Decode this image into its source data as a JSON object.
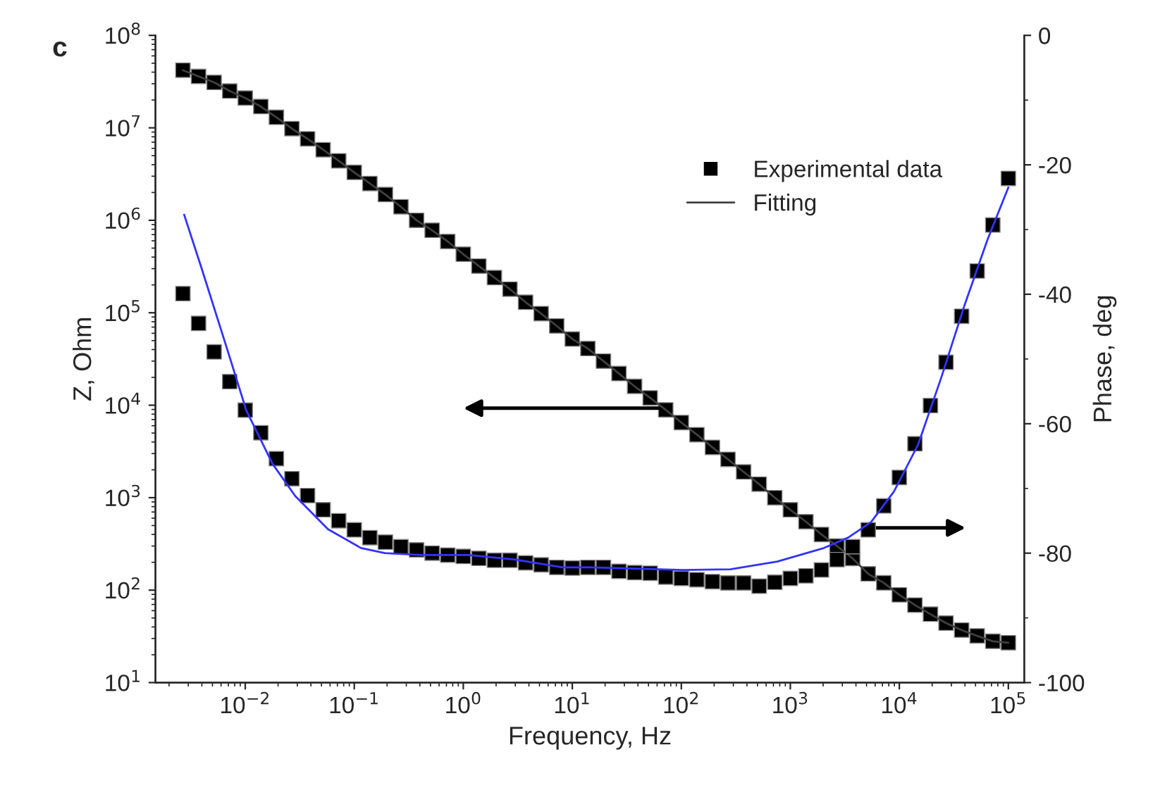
{
  "chart_data": {
    "type": "scatter",
    "xlabel": "Frequency, Hz",
    "ylabel": "Z, Ohm",
    "y2label": "Phase, deg",
    "annotations": [
      "c"
    ],
    "x": [
      0.00268,
      0.00373,
      0.00518,
      0.0072,
      0.01,
      0.0139,
      0.0193,
      0.0268,
      0.0373,
      0.0518,
      0.072,
      0.1,
      0.139,
      0.193,
      0.268,
      0.373,
      0.518,
      0.72,
      1,
      1.39,
      1.93,
      2.68,
      3.73,
      5.18,
      7.2,
      10,
      13.9,
      19.3,
      26.8,
      37.3,
      51.8,
      72,
      100,
      139,
      193,
      268,
      373,
      518,
      720,
      1000,
      1390,
      1930,
      2680,
      3730,
      5180,
      7200,
      10000,
      13900,
      19300,
      26800,
      37300,
      51800,
      72000,
      100000
    ],
    "series": [
      {
        "name": "Experimental data",
        "marker": "square",
        "color": "#000000",
        "values": [
          42000000,
          36000000,
          31000000,
          25000000,
          21000000,
          17000000,
          13000000,
          9800000,
          7600000,
          5800000,
          4400000,
          3300000,
          2500000,
          1900000,
          1400000,
          1000000,
          780000,
          590000,
          430000,
          320000,
          240000,
          180000,
          130000,
          98000,
          72000,
          52000,
          41000,
          30000,
          22000,
          16000,
          12000,
          8900,
          6500,
          4800,
          3500,
          2600,
          1900,
          1400,
          1000,
          740,
          550,
          400,
          300,
          220,
          150,
          120,
          89,
          69,
          55,
          44,
          37,
          32,
          28,
          27
        ]
      },
      {
        "name": "Fitting",
        "type": "line",
        "color": "#404040",
        "values": [
          42000000,
          36000000,
          31000000,
          25000000,
          21000000,
          17000000,
          13000000,
          9800000,
          7600000,
          5800000,
          4400000,
          3300000,
          2500000,
          1900000,
          1400000,
          1000000,
          780000,
          590000,
          430000,
          320000,
          240000,
          180000,
          130000,
          98000,
          72000,
          52000,
          41000,
          30000,
          22000,
          16000,
          12000,
          8900,
          6500,
          4800,
          3500,
          2600,
          1900,
          1400,
          1000,
          740,
          550,
          400,
          300,
          220,
          150,
          120,
          89,
          69,
          55,
          44,
          37,
          32,
          28,
          27
        ]
      },
      {
        "marker": "square",
        "axis": "y2",
        "color": "#000000",
        "values": [
          -39.9,
          -44.5,
          -48.9,
          -53.5,
          -57.9,
          -61.4,
          -65.4,
          -68.5,
          -71.1,
          -73.3,
          -75.0,
          -76.4,
          -77.6,
          -78.3,
          -79.0,
          -79.5,
          -80.0,
          -80.3,
          -80.5,
          -80.8,
          -81.1,
          -81.1,
          -81.5,
          -81.8,
          -82.2,
          -82.3,
          -82.2,
          -82.2,
          -82.8,
          -83.0,
          -83.1,
          -83.7,
          -83.9,
          -84.1,
          -84.4,
          -84.6,
          -84.6,
          -85.1,
          -84.5,
          -83.9,
          -83.5,
          -82.6,
          -81.0,
          -79.0,
          -76.4,
          -72.7,
          -68.3,
          -63.1,
          -57.2,
          -50.5,
          -43.4,
          -36.4,
          -29.3,
          -22.1
        ]
      },
      {
        "type": "line",
        "axis": "y2",
        "color": "#3333ff",
        "x": [
          0.00275,
          0.00398,
          0.00692,
          0.0102,
          0.0178,
          0.0288,
          0.0575,
          0.115,
          0.191,
          0.417,
          1.12,
          3.02,
          8.13,
          14.8,
          105,
          282,
          759,
          2040,
          3390,
          5500,
          8910,
          14800,
          24000,
          39800,
          64600,
          100000
        ],
        "values": [
          -27.7,
          -36,
          -48.8,
          -57.9,
          -66.2,
          -71.2,
          -76.3,
          -79.2,
          -80.0,
          -80.3,
          -80.3,
          -81.0,
          -82.2,
          -82.2,
          -82.6,
          -82.5,
          -81.3,
          -79.2,
          -77.6,
          -75.2,
          -70.5,
          -63.3,
          -53.1,
          -41.6,
          -31.5,
          -23.5
        ]
      }
    ],
    "log": "xy",
    "xlim": [
      0.0015,
      140000
    ],
    "xticks": [
      {
        "value": 0.01,
        "label": "10$^{−2}$"
      },
      {
        "value": 0.1,
        "label": "10$^{−1}$"
      },
      {
        "value": 1,
        "label": "10$^{0}$"
      },
      {
        "value": 10,
        "label": "10$^{1}$"
      },
      {
        "value": 100,
        "label": "10$^{2}$"
      },
      {
        "value": 1000,
        "label": "10$^{3}$"
      },
      {
        "value": 10000,
        "label": "10$^{4}$"
      },
      {
        "value": 100000,
        "label": "10$^{5}$"
      }
    ],
    "ylim": [
      10,
      100000000
    ],
    "yticks": [
      {
        "value": 10,
        "label": "10$^{1}$"
      },
      {
        "value": 100,
        "label": "10$^{2}$"
      },
      {
        "value": 1000,
        "label": "10$^{3}$"
      },
      {
        "value": 10000,
        "label": "10$^{4}$"
      },
      {
        "value": 100000,
        "label": "10$^{5}$"
      },
      {
        "value": 1000000,
        "label": "10$^{6}$"
      },
      {
        "value": 10000000,
        "label": "10$^{7}$"
      },
      {
        "value": 100000000,
        "label": "10$^{8}$"
      }
    ],
    "y2lim": [
      -100,
      0
    ],
    "y2ticks": [
      -100,
      -80,
      -60,
      -40,
      -20,
      0
    ],
    "grid": false,
    "legend": "top right"
  }
}
